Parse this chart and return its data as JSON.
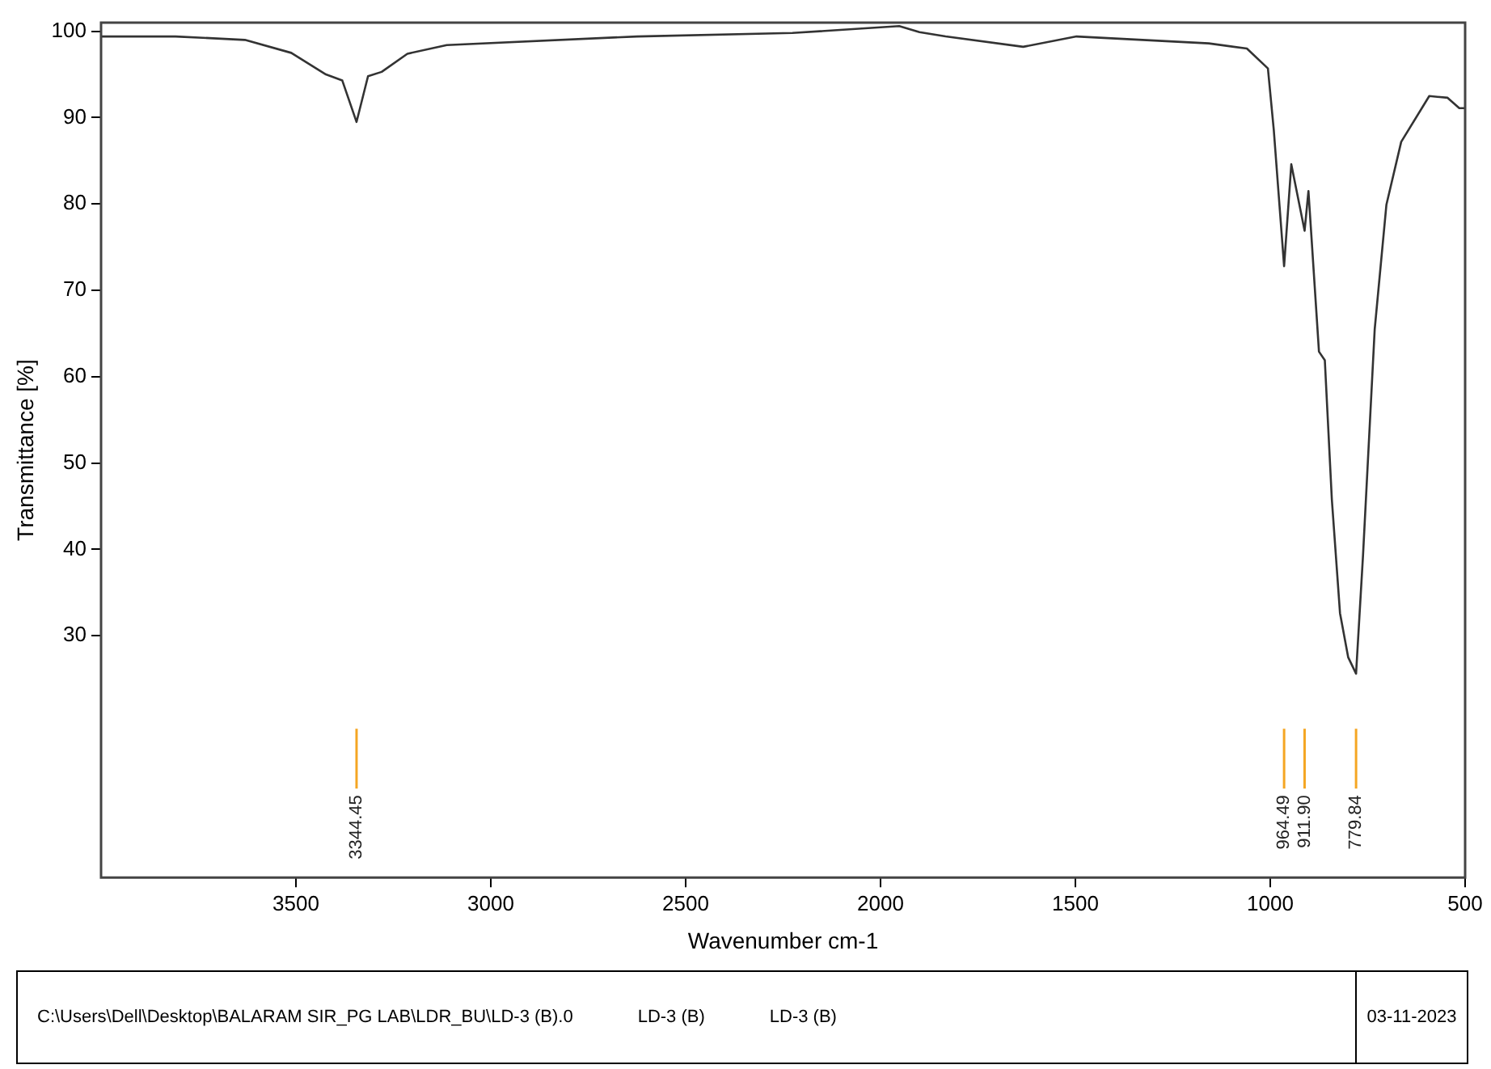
{
  "chart_data": {
    "type": "line",
    "xlabel": "Wavenumber cm-1",
    "ylabel": "Transmittance [%]",
    "x": [
      4000,
      3809,
      3631,
      3512,
      3423,
      3381,
      3344.45,
      3315,
      3280,
      3214,
      3113,
      2625,
      2226,
      1952,
      1900,
      1833,
      1634,
      1497,
      1158,
      1060,
      1006,
      991,
      964.49,
      946,
      911.9,
      902,
      875,
      860,
      842,
      821,
      800,
      779.84,
      762,
      732,
      702,
      664,
      592,
      545,
      515,
      500
    ],
    "series": [
      {
        "color": "#333333",
        "values": [
          99.4,
          99.4,
          99.0,
          97.5,
          95.0,
          94.3,
          89.5,
          94.8,
          95.3,
          97.4,
          98.4,
          99.4,
          99.8,
          100.6,
          99.9,
          99.4,
          98.2,
          99.4,
          98.6,
          98.0,
          95.7,
          88.6,
          72.8,
          84.6,
          76.9,
          81.5,
          62.9,
          61.9,
          45.8,
          32.6,
          27.5,
          25.6,
          39.3,
          65.5,
          79.9,
          87.2,
          92.5,
          92.3,
          91.1,
          91.1
        ]
      }
    ],
    "xlim": [
      4000,
      500
    ],
    "xticks": [
      3500,
      3000,
      2500,
      2000,
      1500,
      1000,
      500
    ],
    "ylim": [
      2,
      101
    ],
    "yticks": [
      30,
      40,
      50,
      60,
      70,
      80,
      90,
      100
    ],
    "grid": false,
    "legend": false,
    "marker": "none",
    "line_style": "solid",
    "ref_lines": [
      {
        "axis": "x",
        "value": 3344.45,
        "label": "3344.45",
        "color": "#f5a623"
      },
      {
        "axis": "x",
        "value": 964.49,
        "label": "964.49",
        "color": "#f5a623"
      },
      {
        "axis": "x",
        "value": 911.9,
        "label": "911.90",
        "color": "#f5a623"
      },
      {
        "axis": "x",
        "value": 779.84,
        "label": "779.84",
        "color": "#f5a623"
      }
    ],
    "annotations": [
      "C:\\Users\\Dell\\Desktop\\BALARAM SIR_PG LAB\\LDR_BU\\LD-3 (B).0",
      "LD-3 (B)",
      "LD-3 (B)",
      "03-11-2023"
    ]
  }
}
